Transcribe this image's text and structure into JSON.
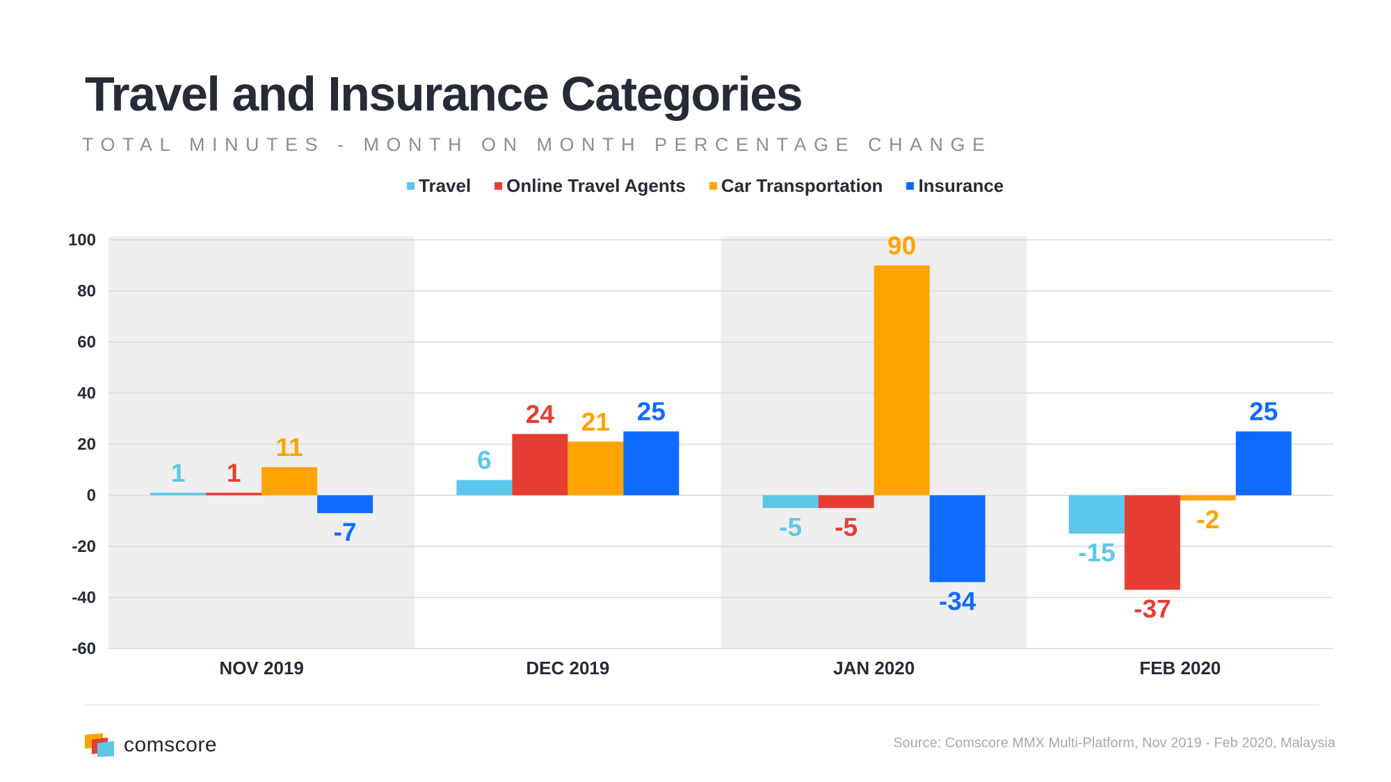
{
  "header": {
    "title": "Travel and Insurance Categories",
    "subtitle": "TOTAL MINUTES - MONTH ON MONTH PERCENTAGE CHANGE"
  },
  "legend": [
    {
      "label": "Travel",
      "color": "#5bc8ea"
    },
    {
      "label": "Online Travel Agents",
      "color": "#e63e32"
    },
    {
      "label": "Car Transportation",
      "color": "#ffa300"
    },
    {
      "label": "Insurance",
      "color": "#0f6bff"
    }
  ],
  "footer": {
    "brand": "comscore",
    "source": "Source: Comscore MMX Multi-Platform, Nov 2019 - Feb 2020, Malaysia"
  },
  "chart_data": {
    "type": "bar",
    "title": "Travel and Insurance Categories",
    "subtitle": "TOTAL MINUTES - MONTH ON MONTH PERCENTAGE CHANGE",
    "categories": [
      "NOV 2019",
      "DEC 2019",
      "JAN 2020",
      "FEB 2020"
    ],
    "series": [
      {
        "name": "Travel",
        "color": "#5bc8ea",
        "values": [
          1,
          6,
          -5,
          -15
        ]
      },
      {
        "name": "Online Travel Agents",
        "color": "#e63e32",
        "values": [
          1,
          24,
          -5,
          -37
        ]
      },
      {
        "name": "Car Transportation",
        "color": "#ffa300",
        "values": [
          11,
          21,
          90,
          -2
        ]
      },
      {
        "name": "Insurance",
        "color": "#0f6bff",
        "values": [
          -7,
          25,
          -34,
          25
        ]
      }
    ],
    "ylim": [
      -60,
      100
    ],
    "yticks": [
      100,
      80,
      60,
      40,
      20,
      0,
      -20,
      -40,
      -60
    ],
    "grid": true,
    "shaded_categories": [
      "NOV 2019",
      "JAN 2020"
    ],
    "legend_position": "top-center"
  }
}
